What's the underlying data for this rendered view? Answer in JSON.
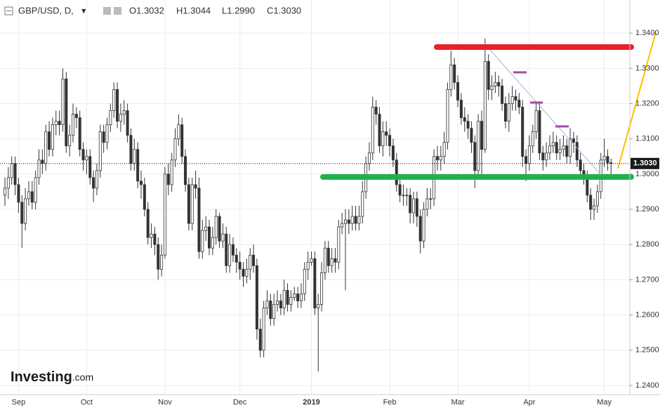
{
  "chart_data": {
    "type": "candlestick",
    "symbol": "GBP/USD, D,",
    "ohlc_labels": [
      "O1.3032",
      "H1.3044",
      "L1.2990",
      "C1.3030"
    ],
    "last_price_label": "1.3030",
    "logo": "Investing",
    "logo_suffix": ".com",
    "up_color": "#ffffff",
    "down_color": "#333333",
    "wick_color": "#333333",
    "grid": true,
    "ylim": [
      1.2374,
      1.3494
    ],
    "yticks": [
      {
        "value": 1.24,
        "label": "1.2400"
      },
      {
        "value": 1.25,
        "label": "1.2500"
      },
      {
        "value": 1.26,
        "label": "1.2600"
      },
      {
        "value": 1.27,
        "label": "1.2700"
      },
      {
        "value": 1.28,
        "label": "1.2800"
      },
      {
        "value": 1.29,
        "label": "1.2900"
      },
      {
        "value": 1.3,
        "label": "1.3000"
      },
      {
        "value": 1.31,
        "label": "1.3100"
      },
      {
        "value": 1.32,
        "label": "1.3200"
      },
      {
        "value": 1.33,
        "label": "1.3300"
      },
      {
        "value": 1.34,
        "label": "1.3400"
      }
    ],
    "categories": [
      null,
      null,
      null,
      null,
      "Sep",
      null,
      null,
      null,
      null,
      null,
      null,
      null,
      null,
      null,
      null,
      null,
      null,
      null,
      null,
      null,
      null,
      null,
      null,
      null,
      "Oct",
      null,
      null,
      null,
      null,
      null,
      null,
      null,
      null,
      null,
      null,
      null,
      null,
      null,
      null,
      null,
      null,
      null,
      null,
      null,
      null,
      null,
      null,
      "Nov",
      null,
      null,
      null,
      null,
      null,
      null,
      null,
      null,
      null,
      null,
      null,
      null,
      null,
      null,
      null,
      null,
      null,
      null,
      null,
      null,
      null,
      "Dec",
      null,
      null,
      null,
      null,
      null,
      null,
      null,
      null,
      null,
      null,
      null,
      null,
      null,
      null,
      null,
      null,
      null,
      null,
      null,
      null,
      "2019",
      null,
      null,
      null,
      null,
      null,
      null,
      null,
      null,
      null,
      null,
      null,
      null,
      null,
      null,
      null,
      null,
      null,
      null,
      null,
      null,
      null,
      null,
      "Feb",
      null,
      null,
      null,
      null,
      null,
      null,
      null,
      null,
      null,
      null,
      null,
      null,
      null,
      null,
      null,
      null,
      null,
      null,
      null,
      "Mar",
      null,
      null,
      null,
      null,
      null,
      null,
      null,
      null,
      null,
      null,
      null,
      null,
      null,
      null,
      null,
      null,
      null,
      null,
      null,
      null,
      "Apr",
      null,
      null,
      null,
      null,
      null,
      null,
      null,
      null,
      null,
      null,
      null,
      null,
      null,
      null,
      null,
      null,
      null,
      null,
      null,
      null,
      null,
      "May",
      null,
      null
    ],
    "open": [
      1.294,
      1.296,
      1.299,
      1.303,
      1.297,
      1.292,
      1.286,
      1.293,
      1.295,
      1.292,
      1.299,
      1.304,
      1.303,
      1.312,
      1.307,
      1.314,
      1.315,
      1.314,
      1.327,
      1.308,
      1.311,
      1.317,
      1.316,
      1.307,
      1.304,
      1.305,
      1.299,
      1.296,
      1.301,
      1.312,
      1.309,
      1.314,
      1.318,
      1.324,
      1.315,
      1.317,
      1.318,
      1.311,
      1.303,
      1.307,
      1.298,
      1.297,
      1.29,
      1.282,
      1.283,
      1.28,
      1.273,
      1.277,
      1.3,
      1.297,
      1.304,
      1.31,
      1.314,
      1.305,
      1.297,
      1.286,
      1.297,
      1.296,
      1.278,
      1.284,
      1.285,
      1.279,
      1.282,
      1.288,
      1.281,
      1.283,
      1.274,
      1.28,
      1.277,
      1.275,
      1.273,
      1.271,
      1.273,
      1.277,
      1.274,
      1.256,
      1.25,
      1.262,
      1.264,
      1.259,
      1.263,
      1.264,
      1.262,
      1.267,
      1.263,
      1.265,
      1.266,
      1.264,
      1.266,
      1.273,
      1.275,
      1.276,
      1.262,
      1.263,
      1.272,
      1.279,
      1.274,
      1.276,
      1.275,
      1.285,
      1.286,
      1.287,
      1.286,
      1.288,
      1.286,
      1.288,
      1.295,
      1.303,
      1.306,
      1.319,
      1.317,
      1.308,
      1.312,
      1.311,
      1.308,
      1.304,
      1.297,
      1.294,
      1.294,
      1.294,
      1.289,
      1.293,
      1.288,
      1.281,
      1.29,
      1.293,
      1.293,
      1.305,
      1.304,
      1.305,
      1.309,
      1.324,
      1.331,
      1.326,
      1.321,
      1.316,
      1.315,
      1.313,
      1.309,
      1.301,
      1.315,
      1.307,
      1.332,
      1.324,
      1.325,
      1.326,
      1.325,
      1.32,
      1.315,
      1.32,
      1.322,
      1.321,
      1.319,
      1.305,
      1.303,
      1.308,
      1.312,
      1.318,
      1.306,
      1.304,
      1.306,
      1.308,
      1.309,
      1.306,
      1.307,
      1.308,
      1.305,
      1.31,
      1.309,
      1.304,
      1.301,
      1.299,
      1.294,
      1.29,
      1.291,
      1.295,
      1.304,
      1.305,
      1.3032
    ],
    "high": [
      1.299,
      1.302,
      1.305,
      1.305,
      1.299,
      1.294,
      1.296,
      1.298,
      1.298,
      1.301,
      1.307,
      1.307,
      1.314,
      1.315,
      1.316,
      1.318,
      1.318,
      1.33,
      1.329,
      1.314,
      1.32,
      1.319,
      1.318,
      1.309,
      1.307,
      1.307,
      1.301,
      1.303,
      1.314,
      1.314,
      1.316,
      1.32,
      1.326,
      1.326,
      1.32,
      1.321,
      1.32,
      1.313,
      1.31,
      1.309,
      1.301,
      1.299,
      1.292,
      1.286,
      1.285,
      1.282,
      1.28,
      1.302,
      1.303,
      1.306,
      1.313,
      1.317,
      1.316,
      1.307,
      1.299,
      1.299,
      1.301,
      1.299,
      1.287,
      1.288,
      1.287,
      1.285,
      1.29,
      1.289,
      1.286,
      1.285,
      1.283,
      1.282,
      1.279,
      1.278,
      1.275,
      1.276,
      1.279,
      1.28,
      1.276,
      1.259,
      1.264,
      1.267,
      1.266,
      1.266,
      1.267,
      1.266,
      1.27,
      1.269,
      1.267,
      1.268,
      1.268,
      1.269,
      1.275,
      1.278,
      1.278,
      1.278,
      1.266,
      1.275,
      1.281,
      1.281,
      1.279,
      1.279,
      1.287,
      1.289,
      1.29,
      1.29,
      1.291,
      1.291,
      1.291,
      1.298,
      1.305,
      1.309,
      1.322,
      1.321,
      1.319,
      1.315,
      1.315,
      1.313,
      1.31,
      1.306,
      1.299,
      1.297,
      1.296,
      1.296,
      1.295,
      1.295,
      1.29,
      1.292,
      1.296,
      1.296,
      1.307,
      1.308,
      1.308,
      1.312,
      1.326,
      1.335,
      1.333,
      1.328,
      1.323,
      1.319,
      1.317,
      1.315,
      1.311,
      1.317,
      1.318,
      1.3385,
      1.334,
      1.328,
      1.329,
      1.328,
      1.327,
      1.322,
      1.323,
      1.325,
      1.324,
      1.323,
      1.321,
      1.307,
      1.311,
      1.314,
      1.32,
      1.32,
      1.308,
      1.309,
      1.311,
      1.312,
      1.311,
      1.31,
      1.311,
      1.31,
      1.313,
      1.312,
      1.311,
      1.306,
      1.303,
      1.301,
      1.296,
      1.293,
      1.297,
      1.306,
      1.31,
      1.307,
      1.3044
    ],
    "low": [
      1.291,
      1.293,
      1.297,
      1.294,
      1.289,
      1.279,
      1.284,
      1.291,
      1.29,
      1.29,
      1.297,
      1.3,
      1.301,
      1.305,
      1.305,
      1.311,
      1.311,
      1.312,
      1.306,
      1.305,
      1.309,
      1.313,
      1.305,
      1.301,
      1.3,
      1.297,
      1.292,
      1.294,
      1.299,
      1.306,
      1.307,
      1.312,
      1.316,
      1.313,
      1.312,
      1.314,
      1.309,
      1.301,
      1.301,
      1.296,
      1.293,
      1.288,
      1.28,
      1.279,
      1.277,
      1.27,
      1.271,
      1.276,
      1.294,
      1.295,
      1.302,
      1.308,
      1.303,
      1.295,
      1.284,
      1.284,
      1.293,
      1.276,
      1.276,
      1.281,
      1.277,
      1.277,
      1.28,
      1.279,
      1.279,
      1.272,
      1.272,
      1.275,
      1.272,
      1.27,
      1.268,
      1.269,
      1.27,
      1.272,
      1.253,
      1.248,
      1.248,
      1.26,
      1.257,
      1.257,
      1.261,
      1.26,
      1.26,
      1.261,
      1.261,
      1.264,
      1.262,
      1.262,
      1.264,
      1.27,
      1.274,
      1.26,
      1.244,
      1.261,
      1.27,
      1.272,
      1.272,
      1.272,
      1.273,
      1.283,
      1.267,
      1.283,
      1.284,
      1.284,
      1.284,
      1.286,
      1.293,
      1.301,
      1.304,
      1.314,
      1.306,
      1.305,
      1.308,
      1.305,
      1.302,
      1.295,
      1.292,
      1.291,
      1.291,
      1.286,
      1.286,
      1.285,
      1.2775,
      1.279,
      1.288,
      1.29,
      1.291,
      1.301,
      1.301,
      1.303,
      1.307,
      1.322,
      1.324,
      1.319,
      1.314,
      1.312,
      1.31,
      1.306,
      1.296,
      1.299,
      1.3,
      1.306,
      1.321,
      1.321,
      1.323,
      1.322,
      1.318,
      1.313,
      1.312,
      1.318,
      1.318,
      1.317,
      1.302,
      1.298,
      1.301,
      1.306,
      1.31,
      1.304,
      1.301,
      1.302,
      1.304,
      1.306,
      1.304,
      1.304,
      1.305,
      1.303,
      1.303,
      1.306,
      1.302,
      1.299,
      1.297,
      1.292,
      1.287,
      1.287,
      1.289,
      1.293,
      1.302,
      1.301,
      1.299
    ],
    "close": [
      1.296,
      1.299,
      1.303,
      1.297,
      1.292,
      1.286,
      1.293,
      1.295,
      1.292,
      1.299,
      1.304,
      1.303,
      1.312,
      1.307,
      1.314,
      1.315,
      1.314,
      1.327,
      1.308,
      1.311,
      1.317,
      1.316,
      1.307,
      1.304,
      1.305,
      1.299,
      1.296,
      1.301,
      1.312,
      1.309,
      1.314,
      1.318,
      1.324,
      1.315,
      1.317,
      1.318,
      1.311,
      1.303,
      1.307,
      1.298,
      1.297,
      1.29,
      1.282,
      1.283,
      1.28,
      1.273,
      1.277,
      1.3,
      1.297,
      1.304,
      1.31,
      1.314,
      1.305,
      1.297,
      1.286,
      1.297,
      1.296,
      1.278,
      1.284,
      1.285,
      1.279,
      1.282,
      1.288,
      1.281,
      1.283,
      1.274,
      1.28,
      1.277,
      1.275,
      1.273,
      1.271,
      1.273,
      1.277,
      1.274,
      1.256,
      1.25,
      1.262,
      1.264,
      1.259,
      1.263,
      1.264,
      1.262,
      1.267,
      1.263,
      1.265,
      1.266,
      1.264,
      1.266,
      1.273,
      1.275,
      1.276,
      1.262,
      1.263,
      1.272,
      1.279,
      1.274,
      1.276,
      1.275,
      1.285,
      1.286,
      1.287,
      1.286,
      1.288,
      1.286,
      1.288,
      1.295,
      1.303,
      1.306,
      1.319,
      1.317,
      1.308,
      1.312,
      1.311,
      1.308,
      1.304,
      1.297,
      1.294,
      1.294,
      1.294,
      1.289,
      1.293,
      1.288,
      1.281,
      1.29,
      1.293,
      1.293,
      1.305,
      1.304,
      1.305,
      1.309,
      1.324,
      1.331,
      1.326,
      1.321,
      1.316,
      1.315,
      1.313,
      1.309,
      1.301,
      1.315,
      1.307,
      1.332,
      1.324,
      1.325,
      1.326,
      1.325,
      1.32,
      1.315,
      1.32,
      1.322,
      1.321,
      1.319,
      1.305,
      1.303,
      1.308,
      1.312,
      1.318,
      1.306,
      1.304,
      1.306,
      1.308,
      1.309,
      1.306,
      1.307,
      1.308,
      1.305,
      1.31,
      1.309,
      1.304,
      1.301,
      1.299,
      1.294,
      1.29,
      1.291,
      1.295,
      1.304,
      1.305,
      1.3032,
      1.303
    ]
  }
}
